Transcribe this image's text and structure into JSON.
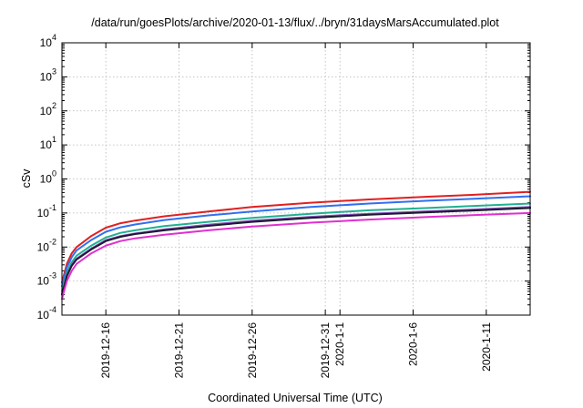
{
  "chart_data": {
    "type": "line",
    "title": "/data/run/goesPlots/archive/2020-01-13/flux/../bryn/31daysMarsAccumulated.plot",
    "xlabel": "Coordinated Universal Time (UTC)",
    "ylabel": "cSv",
    "yscale": "log",
    "ylim": [
      0.0001,
      10000
    ],
    "xlim": [
      "2019-12-13",
      "2020-01-14"
    ],
    "grid": true,
    "x_ticks": [
      {
        "date": "2019-12-16",
        "label": "2019-12-16"
      },
      {
        "date": "2019-12-21",
        "label": "2019-12-21"
      },
      {
        "date": "2019-12-26",
        "label": "2019-12-26"
      },
      {
        "date": "2019-12-31",
        "label": "2019-12-31"
      },
      {
        "date": "2020-01-01",
        "label": "2020-1-1"
      },
      {
        "date": "2020-01-06",
        "label": "2020-1-6"
      },
      {
        "date": "2020-01-11",
        "label": "2020-1-11"
      }
    ],
    "y_ticks": [
      {
        "value": 0.0001,
        "base": "10",
        "exp": "-4"
      },
      {
        "value": 0.001,
        "base": "10",
        "exp": "-3"
      },
      {
        "value": 0.01,
        "base": "10",
        "exp": "-2"
      },
      {
        "value": 0.1,
        "base": "10",
        "exp": "-1"
      },
      {
        "value": 1,
        "base": "10",
        "exp": "0"
      },
      {
        "value": 10,
        "base": "10",
        "exp": "1"
      },
      {
        "value": 100,
        "base": "10",
        "exp": "2"
      },
      {
        "value": 1000,
        "base": "10",
        "exp": "3"
      },
      {
        "value": 10000,
        "base": "10",
        "exp": "4"
      }
    ],
    "series": [
      {
        "color": "#e02020",
        "x": [
          "2019-12-13",
          "2019-12-13 08:00",
          "2019-12-13 16:00",
          "2019-12-14",
          "2019-12-15",
          "2019-12-16",
          "2019-12-17",
          "2019-12-18",
          "2019-12-20",
          "2019-12-23",
          "2019-12-26",
          "2019-12-30",
          "2020-01-03",
          "2020-01-07",
          "2020-01-10",
          "2020-01-14"
        ],
        "values": [
          0.0009,
          0.0032,
          0.0065,
          0.01,
          0.021,
          0.037,
          0.05,
          0.06,
          0.08,
          0.11,
          0.15,
          0.2,
          0.25,
          0.3,
          0.34,
          0.42
        ]
      },
      {
        "color": "#3070f0",
        "x": [
          "2019-12-13",
          "2019-12-13 08:00",
          "2019-12-13 16:00",
          "2019-12-14",
          "2019-12-15",
          "2019-12-16",
          "2019-12-17",
          "2019-12-18",
          "2019-12-20",
          "2019-12-23",
          "2019-12-26",
          "2019-12-30",
          "2020-01-03",
          "2020-01-07",
          "2020-01-10",
          "2020-01-14"
        ],
        "values": [
          0.0007,
          0.0025,
          0.005,
          0.008,
          0.016,
          0.028,
          0.038,
          0.046,
          0.062,
          0.085,
          0.11,
          0.15,
          0.19,
          0.23,
          0.26,
          0.31
        ]
      },
      {
        "color": "#20b090",
        "x": [
          "2019-12-13",
          "2019-12-13 08:00",
          "2019-12-13 16:00",
          "2019-12-14",
          "2019-12-15",
          "2019-12-16",
          "2019-12-17",
          "2019-12-18",
          "2019-12-20",
          "2019-12-23",
          "2019-12-26",
          "2019-12-30",
          "2020-01-03",
          "2020-01-07",
          "2020-01-10",
          "2020-01-14"
        ],
        "values": [
          0.0005,
          0.0018,
          0.0036,
          0.0056,
          0.011,
          0.019,
          0.026,
          0.031,
          0.041,
          0.055,
          0.072,
          0.095,
          0.12,
          0.14,
          0.16,
          0.19
        ]
      },
      {
        "color": "#8a4fc0",
        "x": [
          "2019-12-13",
          "2019-12-13 08:00",
          "2019-12-13 16:00",
          "2019-12-14",
          "2019-12-15",
          "2019-12-16",
          "2019-12-17",
          "2019-12-18",
          "2019-12-20",
          "2019-12-23",
          "2019-12-26",
          "2019-12-30",
          "2020-01-03",
          "2020-01-07",
          "2020-01-10",
          "2020-01-14"
        ],
        "values": [
          0.00042,
          0.0015,
          0.003,
          0.0046,
          0.009,
          0.016,
          0.021,
          0.025,
          0.033,
          0.045,
          0.059,
          0.077,
          0.095,
          0.112,
          0.126,
          0.15
        ]
      },
      {
        "color": "#1a1a2e",
        "x": [
          "2019-12-13",
          "2019-12-13 08:00",
          "2019-12-13 16:00",
          "2019-12-14",
          "2019-12-15",
          "2019-12-16",
          "2019-12-17",
          "2019-12-18",
          "2019-12-20",
          "2019-12-23",
          "2019-12-26",
          "2019-12-30",
          "2020-01-03",
          "2020-01-07",
          "2020-01-10",
          "2020-01-14"
        ],
        "values": [
          0.0004,
          0.0014,
          0.0028,
          0.0043,
          0.0085,
          0.015,
          0.02,
          0.024,
          0.031,
          0.042,
          0.055,
          0.072,
          0.089,
          0.105,
          0.118,
          0.14
        ]
      },
      {
        "color": "#e030d0",
        "x": [
          "2019-12-13",
          "2019-12-13 08:00",
          "2019-12-13 16:00",
          "2019-12-14",
          "2019-12-15",
          "2019-12-16",
          "2019-12-17",
          "2019-12-18",
          "2019-12-20",
          "2019-12-23",
          "2019-12-26",
          "2019-12-30",
          "2020-01-03",
          "2020-01-07",
          "2020-01-10",
          "2020-01-14"
        ],
        "values": [
          0.0003,
          0.001,
          0.002,
          0.0032,
          0.0065,
          0.011,
          0.015,
          0.018,
          0.023,
          0.031,
          0.04,
          0.052,
          0.064,
          0.076,
          0.086,
          0.1
        ]
      }
    ]
  }
}
